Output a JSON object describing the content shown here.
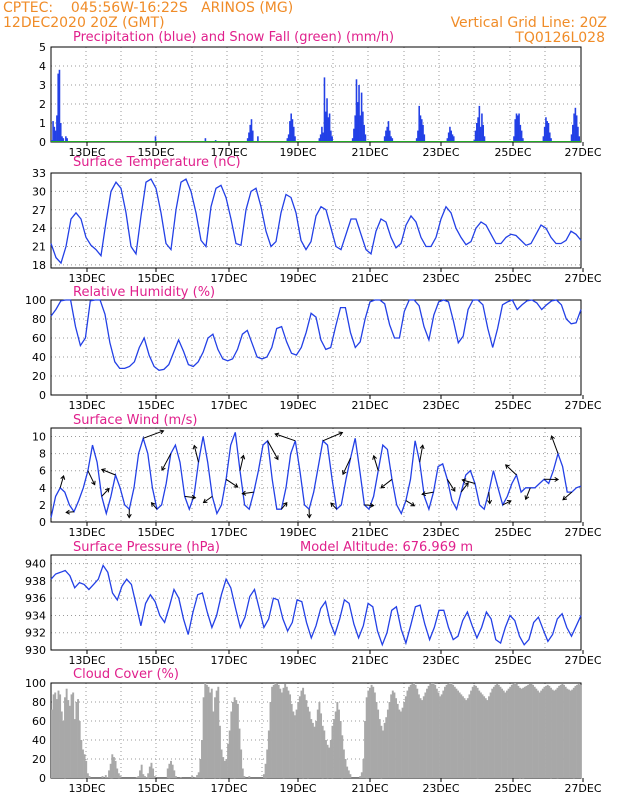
{
  "header": {
    "left_line1": "CPTEC:    045:56W-16:22S   ARINOS (MG)",
    "left_line2": "12DEC2020 20Z (GMT)",
    "right_line1": "Vertical Grid Line: 20Z",
    "right_line2": "TQ0126L028"
  },
  "panel_titles": {
    "precip": "Precipitation (blue) and Snow Fall (green) (mm/h)",
    "temp": "Surface Temperature (nC)",
    "rh": "Relative Humidity (%)",
    "wind": "Surface Wind (m/s)",
    "pressure": "Surface Pressure (hPa)",
    "model_altitude": "Model Altitude: 676.969 m",
    "cloud": "Cloud Cover (%)"
  },
  "colors": {
    "line": "#2340e6",
    "bar": "#2340e6",
    "snow": "#22aa22",
    "cloud": "#a8a8a8",
    "grid": "#9a9a9a",
    "title": "#e0208c",
    "header": "#f08c28"
  },
  "chart_data": [
    {
      "type": "bar",
      "name": "precip",
      "x_tick_labels": [
        "13DEC",
        "15DEC",
        "17DEC",
        "19DEC",
        "21DEC",
        "23DEC",
        "25DEC",
        "27DEC"
      ],
      "y_ticks": [
        0,
        1,
        2,
        3,
        4,
        5
      ],
      "ylim": [
        0,
        5
      ],
      "values": [
        0.1,
        1.1,
        0.8,
        0.6,
        1.4,
        3.6,
        3.8,
        1.0,
        0.3,
        0.2,
        0,
        0.3,
        0.2,
        0,
        0,
        0,
        0,
        0,
        0,
        0,
        0,
        0,
        0,
        0,
        0,
        0,
        0,
        0,
        0,
        0,
        0,
        0,
        0,
        0,
        0,
        0,
        0,
        0,
        0,
        0,
        0,
        0,
        0,
        0,
        0,
        0,
        0,
        0,
        0,
        0,
        0,
        0,
        0,
        0,
        0,
        0,
        0,
        0,
        0,
        0,
        0,
        0,
        0,
        0,
        0,
        0,
        0,
        0,
        0,
        0,
        0,
        0,
        0,
        0,
        0,
        0,
        0,
        0,
        0,
        0,
        0,
        0.3,
        0,
        0,
        0,
        0,
        0,
        0,
        0,
        0,
        0,
        0,
        0,
        0,
        0,
        0,
        0,
        0,
        0,
        0,
        0,
        0,
        0,
        0,
        0,
        0,
        0,
        0,
        0,
        0,
        0,
        0,
        0,
        0,
        0,
        0,
        0,
        0,
        0,
        0,
        0.2,
        0,
        0,
        0,
        0,
        0,
        0,
        0,
        0.1,
        0,
        0,
        0,
        0,
        0,
        0,
        0,
        0,
        0,
        0,
        0,
        0,
        0,
        0,
        0,
        0,
        0,
        0,
        0,
        0,
        0,
        0,
        0,
        0,
        0.2,
        0.5,
        0.9,
        1.2,
        0.6,
        0,
        0,
        0,
        0.3,
        0,
        0,
        0,
        0,
        0,
        0,
        0,
        0,
        0,
        0,
        0,
        0,
        0,
        0,
        0,
        0,
        0,
        0,
        0,
        0,
        0,
        0,
        0.2,
        0.4,
        1.1,
        1.5,
        1.2,
        0.8,
        0.3,
        0,
        0,
        0,
        0,
        0,
        0,
        0,
        0,
        0,
        0,
        0,
        0,
        0,
        0,
        0,
        0,
        0,
        0,
        0.2,
        0.4,
        0.8,
        0.5,
        3.4,
        1.6,
        2.3,
        1.3,
        1.5,
        0.6,
        0.3,
        0,
        0,
        0,
        0,
        0,
        0,
        0,
        0,
        0,
        0,
        0,
        0,
        0,
        0,
        0,
        0.2,
        0.7,
        1.4,
        3.3,
        2.1,
        3.0,
        1.4,
        2.6,
        1.6,
        0.9,
        0.4,
        0,
        0,
        0,
        0,
        0,
        0,
        0,
        0,
        0,
        0,
        0,
        0,
        0,
        0,
        0.3,
        0.6,
        0.8,
        1.1,
        0.6,
        0.3,
        0.2,
        0,
        0,
        0,
        0,
        0,
        0,
        0,
        0,
        0,
        0,
        0,
        0,
        0,
        0,
        0,
        0,
        0,
        0,
        0.2,
        0.6,
        1.9,
        1.4,
        1.2,
        0.9,
        0.4,
        0,
        0,
        0,
        0,
        0,
        0,
        0,
        0,
        0,
        0,
        0,
        0,
        0,
        0,
        0,
        0,
        0,
        0.2,
        0.5,
        0.8,
        0.6,
        0.4,
        0.3,
        0,
        0,
        0,
        0,
        0,
        0,
        0,
        0,
        0,
        0,
        0,
        0,
        0,
        0,
        0,
        0.1,
        0.6,
        1.0,
        1.3,
        1.9,
        0.8,
        1.5,
        0.9,
        0.3,
        0,
        0,
        0,
        0,
        0,
        0,
        0,
        0,
        0,
        0,
        0,
        0,
        0,
        0,
        0,
        0,
        0,
        0,
        0,
        0,
        0,
        0,
        0.3,
        1.2,
        1.5,
        1.4,
        1.5,
        0.9,
        0.6,
        0.2,
        0,
        0,
        0,
        0,
        0,
        0,
        0,
        0,
        0,
        0,
        0,
        0,
        0,
        0,
        0,
        0.3,
        0.8,
        1.3,
        1.1,
        1.0,
        0.5,
        0.2,
        0,
        0,
        0,
        0,
        0,
        0,
        0,
        0,
        0,
        0,
        0,
        0,
        0,
        0,
        0,
        0.4,
        0.9,
        1.5,
        1.8,
        1.4,
        0.8,
        0.3,
        0
      ]
    },
    {
      "type": "line",
      "name": "temp",
      "x_tick_labels": [
        "13DEC",
        "15DEC",
        "17DEC",
        "19DEC",
        "21DEC",
        "23DEC",
        "25DEC",
        "27DEC"
      ],
      "y_ticks": [
        18,
        21,
        24,
        27,
        30,
        33
      ],
      "ylim": [
        17.5,
        33
      ],
      "values": [
        21.5,
        19.2,
        18.3,
        21,
        25.5,
        26.5,
        25.5,
        22.5,
        21.2,
        20.5,
        19.5,
        25,
        30,
        31.5,
        30.5,
        26.5,
        21,
        19.8,
        26,
        31.5,
        32,
        30.5,
        26.5,
        21.5,
        20.5,
        27,
        31.5,
        32,
        30,
        26.5,
        22,
        21,
        27.5,
        30.5,
        31,
        29,
        25.5,
        21.5,
        21.2,
        27,
        30,
        30.5,
        27.5,
        23.5,
        21,
        21.8,
        26.5,
        29.5,
        29,
        26.5,
        22,
        20.5,
        21.8,
        26,
        27.5,
        27,
        24,
        21,
        20.5,
        23,
        25.5,
        25.5,
        23,
        20.5,
        19.8,
        23.5,
        25.5,
        25,
        22.5,
        20.8,
        21.5,
        24.5,
        26,
        25,
        22.5,
        21,
        21,
        22.5,
        25.5,
        27.5,
        26.5,
        24,
        22.5,
        21.3,
        21.8,
        24,
        25,
        24.5,
        23,
        21.5,
        21.5,
        22.5,
        23,
        22.8,
        22,
        21.2,
        21.5,
        23,
        24.5,
        24,
        22.5,
        21.5,
        21.5,
        22,
        23.5,
        23,
        22
      ]
    },
    {
      "type": "line",
      "name": "rh",
      "x_tick_labels": [
        "13DEC",
        "15DEC",
        "17DEC",
        "19DEC",
        "21DEC",
        "23DEC",
        "25DEC",
        "27DEC"
      ],
      "y_ticks": [
        0,
        20,
        40,
        60,
        80,
        100
      ],
      "ylim": [
        0,
        100
      ],
      "values": [
        83,
        90,
        99,
        100,
        100,
        72,
        52,
        60,
        99,
        100,
        100,
        85,
        55,
        35,
        28,
        28,
        30,
        35,
        50,
        60,
        42,
        30,
        26,
        27,
        32,
        45,
        58,
        46,
        32,
        30,
        35,
        45,
        60,
        64,
        48,
        38,
        36,
        38,
        48,
        64,
        68,
        54,
        40,
        38,
        40,
        50,
        70,
        72,
        56,
        44,
        42,
        50,
        66,
        86,
        82,
        58,
        48,
        50,
        72,
        92,
        92,
        66,
        50,
        56,
        80,
        98,
        100,
        100,
        96,
        74,
        60,
        60,
        88,
        100,
        100,
        94,
        72,
        58,
        84,
        98,
        100,
        98,
        78,
        55,
        62,
        90,
        100,
        100,
        95,
        70,
        50,
        70,
        95,
        98,
        100,
        90,
        95,
        99,
        100,
        97,
        90,
        95,
        99,
        100,
        95,
        80,
        75,
        76,
        90
      ]
    },
    {
      "type": "line",
      "name": "wind",
      "x_tick_labels": [
        "13DEC",
        "15DEC",
        "17DEC",
        "19DEC",
        "21DEC",
        "23DEC",
        "25DEC",
        "27DEC"
      ],
      "y_ticks": [
        0,
        2,
        4,
        6,
        8,
        10
      ],
      "ylim": [
        0,
        11
      ],
      "values": [
        0.5,
        3,
        4,
        3.5,
        2,
        1.2,
        2.5,
        4,
        6,
        9,
        7,
        3,
        1,
        3,
        5.5,
        4,
        2,
        1.5,
        4,
        8,
        9.8,
        8,
        4,
        1.5,
        2,
        4.5,
        8,
        9,
        7,
        3,
        1.5,
        3,
        7,
        10,
        7,
        3,
        1,
        2,
        5,
        9,
        10.5,
        6,
        2,
        1.5,
        3.5,
        6,
        9,
        9.5,
        5,
        1.5,
        1.5,
        4,
        8,
        9.5,
        6,
        2,
        1.5,
        3.5,
        6.5,
        9.5,
        9,
        5,
        1.5,
        2,
        5,
        7.5,
        9.8,
        6,
        2,
        1.5,
        3,
        6,
        9,
        8.5,
        5,
        2,
        1,
        2.5,
        5,
        9.5,
        7,
        3,
        1.5,
        3.5,
        6.5,
        6.8,
        5,
        2.5,
        1.5,
        3.5,
        5.5,
        6,
        4.5,
        2,
        1.5,
        3.5,
        6,
        4,
        2,
        3,
        4.5,
        5.5,
        3.5,
        4,
        4,
        4,
        4.5,
        5,
        4.5,
        6,
        8,
        6.5,
        3.5,
        3.5,
        4,
        4.2
      ]
    },
    {
      "type": "line",
      "name": "pressure",
      "x_tick_labels": [
        "13DEC",
        "15DEC",
        "17DEC",
        "19DEC",
        "21DEC",
        "23DEC",
        "25DEC",
        "27DEC"
      ],
      "y_ticks": [
        930,
        932,
        934,
        936,
        938,
        940
      ],
      "ylim": [
        930,
        941
      ],
      "values": [
        938.2,
        938.8,
        939,
        939.2,
        938.6,
        937.2,
        937.8,
        937.6,
        937,
        937.6,
        938.2,
        939.8,
        939,
        936.6,
        935.8,
        937.4,
        938.2,
        937.6,
        935.2,
        932.8,
        935.4,
        936.4,
        935.6,
        934,
        933.2,
        935,
        937,
        936,
        933.6,
        931.8,
        934.4,
        936.4,
        936.6,
        934.4,
        932.6,
        934,
        936.4,
        938.2,
        937.2,
        934.8,
        932.6,
        933.8,
        936.2,
        937,
        934.8,
        932.6,
        933.6,
        936,
        935.8,
        933.6,
        932.2,
        933.2,
        935.8,
        935.6,
        933.2,
        931.4,
        932.8,
        934.8,
        935.6,
        933.2,
        931.8,
        933.6,
        935.8,
        935.4,
        933,
        931.4,
        932.8,
        935.4,
        935,
        932.2,
        930.6,
        932,
        934.6,
        935,
        932.4,
        930.8,
        932.8,
        935,
        935.2,
        933,
        931.2,
        932.6,
        934.6,
        934.6,
        932.6,
        931.2,
        931.6,
        933.4,
        934.4,
        932.8,
        931.4,
        932.6,
        934.4,
        933.6,
        931.2,
        930.8,
        932.6,
        934,
        933.4,
        931.6,
        930.6,
        931.2,
        933.2,
        933.8,
        932.4,
        931,
        931.8,
        933.6,
        934.2,
        932.6,
        931.6,
        932.8,
        934
      ]
    },
    {
      "type": "bar",
      "name": "cloud",
      "x_tick_labels": [
        "13DEC",
        "15DEC",
        "17DEC",
        "19DEC",
        "21DEC",
        "23DEC",
        "25DEC",
        "27DEC"
      ],
      "y_ticks": [
        0,
        20,
        40,
        60,
        80,
        100
      ],
      "ylim": [
        0,
        100
      ],
      "values": [
        72,
        88,
        90,
        83,
        92,
        88,
        70,
        60,
        85,
        94,
        82,
        76,
        88,
        90,
        62,
        80,
        83,
        60,
        40,
        30,
        25,
        18,
        5,
        2,
        0,
        0,
        0,
        0,
        0,
        0,
        0,
        2,
        0,
        3,
        1,
        8,
        15,
        25,
        22,
        18,
        10,
        5,
        2,
        0,
        0,
        0,
        0,
        0,
        0,
        0,
        0,
        0,
        1,
        2,
        8,
        14,
        4,
        2,
        1,
        5,
        12,
        16,
        10,
        2,
        0,
        0,
        0,
        0,
        0,
        0,
        0,
        10,
        15,
        18,
        14,
        8,
        2,
        0,
        0,
        1,
        0,
        0,
        0,
        0,
        0,
        0,
        2,
        0,
        1,
        3,
        6,
        20,
        40,
        85,
        100,
        98,
        96,
        90,
        94,
        70,
        85,
        92,
        96,
        55,
        30,
        22,
        18,
        20,
        36,
        50,
        70,
        80,
        85,
        82,
        78,
        52,
        30,
        10,
        2,
        0,
        0,
        2,
        0,
        0,
        0,
        0,
        0,
        0,
        0,
        0,
        4,
        15,
        30,
        50,
        80,
        96,
        98,
        100,
        99,
        98,
        94,
        90,
        95,
        99,
        96,
        92,
        88,
        78,
        70,
        66,
        72,
        80,
        86,
        92,
        95,
        88,
        82,
        75,
        70,
        62,
        58,
        54,
        60,
        72,
        80,
        68,
        55,
        50,
        40,
        35,
        32,
        40,
        55,
        62,
        70,
        80,
        72,
        60,
        45,
        30,
        20,
        12,
        8,
        4,
        0,
        0,
        0,
        0,
        0,
        2,
        6,
        20,
        60,
        85,
        92,
        95,
        98,
        96,
        90,
        80,
        72,
        62,
        55,
        50,
        58,
        64,
        72,
        80,
        88,
        92,
        90,
        84,
        78,
        72,
        70,
        74,
        80,
        86,
        92,
        96,
        98,
        99,
        100,
        98,
        94,
        88,
        84,
        82,
        86,
        90,
        94,
        97,
        99,
        100,
        100,
        98,
        94,
        90,
        86,
        88,
        92,
        96,
        98,
        99,
        100,
        100,
        98,
        96,
        94,
        92,
        90,
        88,
        86,
        84,
        82,
        84,
        88,
        92,
        96,
        98,
        97,
        95,
        92,
        90,
        88,
        86,
        84,
        82,
        86,
        90,
        94,
        96,
        98,
        99,
        98,
        96,
        94,
        92,
        90,
        92,
        94,
        96,
        98,
        99,
        100,
        99,
        97,
        95,
        94,
        95,
        96,
        97,
        98,
        99,
        99,
        98,
        96,
        94,
        92,
        90,
        92,
        94,
        96,
        97,
        98,
        97,
        95,
        93,
        92,
        93,
        95,
        97,
        98,
        99,
        98,
        96,
        94,
        93,
        92,
        93,
        95,
        97,
        98,
        99,
        98
      ]
    }
  ]
}
